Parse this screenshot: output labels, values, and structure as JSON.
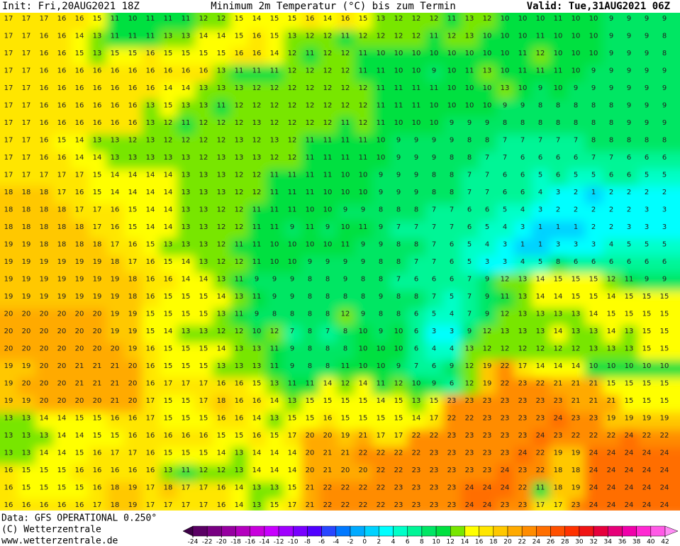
{
  "header": {
    "init": "Init: Fri,20AUG2021 18Z",
    "title": "Minimum 2m Temperatur (°C) bis zum Termin",
    "valid": "Valid: Tue,31AUG2021 06Z"
  },
  "map": {
    "rows": [
      [
        17,
        17,
        17,
        16,
        16,
        15,
        11,
        10,
        11,
        11,
        11,
        12,
        12,
        15,
        14,
        15,
        15,
        16,
        14,
        16,
        15,
        13,
        12,
        12,
        12,
        11,
        13,
        12,
        10,
        10,
        10,
        11,
        10,
        10,
        9,
        9,
        9,
        9
      ],
      [
        17,
        17,
        16,
        16,
        14,
        13,
        11,
        11,
        11,
        13,
        13,
        14,
        14,
        15,
        16,
        15,
        13,
        12,
        12,
        11,
        12,
        12,
        12,
        12,
        11,
        12,
        13,
        10,
        10,
        10,
        11,
        10,
        10,
        10,
        9,
        9,
        9,
        8
      ],
      [
        17,
        17,
        16,
        16,
        15,
        13,
        15,
        15,
        16,
        15,
        15,
        15,
        15,
        16,
        16,
        14,
        12,
        11,
        12,
        12,
        11,
        10,
        10,
        10,
        10,
        10,
        10,
        10,
        10,
        11,
        12,
        10,
        10,
        10,
        9,
        9,
        9,
        8
      ],
      [
        17,
        17,
        16,
        16,
        16,
        16,
        16,
        16,
        16,
        16,
        16,
        16,
        13,
        11,
        11,
        11,
        12,
        12,
        12,
        12,
        11,
        11,
        10,
        10,
        9,
        10,
        11,
        13,
        10,
        11,
        11,
        11,
        10,
        9,
        9,
        9,
        9,
        9
      ],
      [
        17,
        17,
        16,
        16,
        16,
        16,
        16,
        16,
        16,
        14,
        14,
        13,
        13,
        13,
        12,
        12,
        12,
        12,
        12,
        12,
        12,
        11,
        11,
        11,
        11,
        10,
        10,
        10,
        13,
        10,
        9,
        10,
        9,
        9,
        9,
        9,
        9,
        9
      ],
      [
        17,
        17,
        16,
        16,
        16,
        16,
        16,
        16,
        13,
        15,
        13,
        13,
        11,
        12,
        12,
        12,
        12,
        12,
        12,
        12,
        12,
        11,
        11,
        11,
        10,
        10,
        10,
        10,
        9,
        9,
        8,
        8,
        8,
        8,
        8,
        9,
        9,
        9
      ],
      [
        17,
        17,
        16,
        16,
        16,
        16,
        16,
        16,
        13,
        12,
        11,
        12,
        12,
        12,
        13,
        12,
        12,
        12,
        12,
        11,
        12,
        11,
        10,
        10,
        10,
        9,
        9,
        9,
        8,
        8,
        8,
        8,
        8,
        8,
        8,
        9,
        9,
        9
      ],
      [
        17,
        17,
        16,
        15,
        14,
        13,
        13,
        12,
        13,
        12,
        12,
        12,
        12,
        13,
        12,
        13,
        12,
        11,
        11,
        11,
        11,
        10,
        9,
        9,
        9,
        9,
        8,
        8,
        7,
        7,
        7,
        7,
        7,
        8,
        8,
        8,
        8,
        8
      ],
      [
        17,
        17,
        16,
        16,
        14,
        14,
        13,
        13,
        13,
        13,
        13,
        12,
        13,
        13,
        13,
        12,
        12,
        11,
        11,
        11,
        11,
        10,
        9,
        9,
        9,
        8,
        8,
        7,
        7,
        6,
        6,
        6,
        6,
        7,
        7,
        6,
        6,
        6
      ],
      [
        17,
        17,
        17,
        17,
        17,
        15,
        14,
        14,
        14,
        14,
        13,
        13,
        13,
        12,
        12,
        11,
        11,
        11,
        11,
        10,
        10,
        9,
        9,
        9,
        8,
        8,
        7,
        7,
        6,
        6,
        5,
        6,
        5,
        5,
        6,
        6,
        5,
        5
      ],
      [
        18,
        18,
        18,
        17,
        16,
        15,
        14,
        14,
        14,
        14,
        13,
        13,
        13,
        12,
        12,
        11,
        11,
        11,
        10,
        10,
        10,
        9,
        9,
        9,
        8,
        8,
        7,
        7,
        6,
        6,
        4,
        3,
        2,
        1,
        2,
        2,
        2,
        2
      ],
      [
        18,
        18,
        18,
        18,
        17,
        17,
        16,
        15,
        14,
        14,
        13,
        13,
        12,
        12,
        11,
        11,
        11,
        10,
        10,
        9,
        9,
        8,
        8,
        8,
        7,
        7,
        6,
        6,
        5,
        4,
        3,
        2,
        2,
        2,
        2,
        2,
        3,
        3
      ],
      [
        18,
        18,
        18,
        18,
        18,
        17,
        16,
        15,
        14,
        14,
        13,
        13,
        12,
        12,
        11,
        11,
        9,
        11,
        9,
        10,
        11,
        9,
        7,
        7,
        7,
        7,
        6,
        5,
        4,
        3,
        1,
        1,
        1,
        2,
        2,
        3,
        3,
        3
      ],
      [
        19,
        19,
        18,
        18,
        18,
        18,
        17,
        16,
        15,
        13,
        13,
        13,
        12,
        11,
        11,
        10,
        10,
        10,
        10,
        11,
        9,
        9,
        8,
        8,
        7,
        6,
        5,
        4,
        3,
        1,
        1,
        3,
        3,
        3,
        4,
        5,
        5,
        5
      ],
      [
        19,
        19,
        19,
        19,
        19,
        19,
        18,
        17,
        16,
        15,
        14,
        13,
        12,
        12,
        11,
        10,
        10,
        9,
        9,
        9,
        9,
        8,
        8,
        7,
        7,
        6,
        5,
        3,
        3,
        4,
        5,
        8,
        6,
        6,
        6,
        6,
        6,
        6
      ],
      [
        19,
        19,
        19,
        19,
        19,
        19,
        19,
        18,
        16,
        16,
        14,
        14,
        13,
        11,
        9,
        9,
        9,
        8,
        8,
        9,
        8,
        8,
        7,
        6,
        6,
        6,
        7,
        9,
        12,
        13,
        14,
        15,
        15,
        15,
        12,
        11,
        9,
        9
      ],
      [
        19,
        19,
        19,
        19,
        19,
        19,
        19,
        18,
        16,
        15,
        15,
        15,
        14,
        13,
        11,
        9,
        9,
        8,
        8,
        8,
        8,
        9,
        8,
        8,
        7,
        5,
        7,
        9,
        11,
        13,
        14,
        14,
        15,
        15,
        14,
        15,
        15,
        15
      ],
      [
        20,
        20,
        20,
        20,
        20,
        20,
        19,
        19,
        15,
        15,
        15,
        15,
        13,
        11,
        9,
        8,
        8,
        8,
        8,
        12,
        9,
        8,
        8,
        6,
        5,
        4,
        7,
        9,
        12,
        13,
        13,
        13,
        13,
        14,
        15,
        15,
        15,
        15
      ],
      [
        20,
        20,
        20,
        20,
        20,
        20,
        19,
        19,
        15,
        14,
        13,
        13,
        12,
        12,
        10,
        12,
        7,
        8,
        7,
        8,
        10,
        9,
        10,
        6,
        3,
        3,
        9,
        12,
        13,
        13,
        13,
        14,
        13,
        13,
        14,
        13,
        15,
        15
      ],
      [
        20,
        20,
        20,
        20,
        20,
        20,
        20,
        19,
        16,
        15,
        15,
        15,
        14,
        13,
        13,
        11,
        9,
        8,
        8,
        8,
        10,
        10,
        10,
        6,
        4,
        4,
        13,
        12,
        12,
        12,
        12,
        12,
        12,
        13,
        13,
        13,
        15,
        15
      ],
      [
        19,
        19,
        20,
        20,
        21,
        21,
        21,
        20,
        16,
        15,
        15,
        15,
        13,
        13,
        13,
        11,
        9,
        8,
        8,
        11,
        10,
        10,
        9,
        7,
        6,
        9,
        12,
        19,
        22,
        17,
        14,
        14,
        14,
        10,
        10,
        10,
        10,
        10
      ],
      [
        19,
        20,
        20,
        20,
        21,
        21,
        21,
        20,
        16,
        17,
        17,
        17,
        16,
        16,
        15,
        13,
        11,
        11,
        14,
        12,
        14,
        11,
        12,
        10,
        9,
        6,
        12,
        19,
        22,
        23,
        22,
        21,
        21,
        21,
        15,
        15,
        15,
        15
      ],
      [
        19,
        19,
        20,
        20,
        20,
        20,
        21,
        20,
        17,
        15,
        15,
        17,
        18,
        16,
        16,
        14,
        13,
        15,
        15,
        15,
        15,
        14,
        15,
        13,
        15,
        23,
        23,
        23,
        23,
        23,
        23,
        23,
        21,
        21,
        21,
        15,
        15,
        15
      ],
      [
        13,
        13,
        14,
        14,
        15,
        15,
        16,
        16,
        17,
        15,
        15,
        15,
        16,
        16,
        14,
        13,
        15,
        15,
        16,
        15,
        15,
        15,
        15,
        14,
        17,
        22,
        22,
        23,
        23,
        23,
        23,
        24,
        23,
        23,
        19,
        19,
        19,
        19
      ],
      [
        13,
        13,
        13,
        14,
        14,
        15,
        15,
        16,
        16,
        16,
        16,
        16,
        15,
        15,
        16,
        15,
        17,
        20,
        20,
        19,
        21,
        17,
        17,
        22,
        22,
        23,
        23,
        23,
        23,
        23,
        24,
        23,
        22,
        22,
        22,
        24,
        22,
        22
      ],
      [
        13,
        13,
        14,
        14,
        15,
        16,
        17,
        17,
        16,
        15,
        15,
        15,
        14,
        13,
        14,
        14,
        14,
        20,
        21,
        21,
        22,
        22,
        22,
        22,
        23,
        23,
        23,
        23,
        23,
        24,
        22,
        19,
        19,
        24,
        24,
        24,
        24,
        24
      ],
      [
        16,
        15,
        15,
        15,
        16,
        16,
        16,
        16,
        16,
        13,
        11,
        12,
        12,
        13,
        14,
        14,
        14,
        20,
        21,
        20,
        20,
        22,
        22,
        23,
        23,
        23,
        23,
        23,
        24,
        23,
        22,
        18,
        18,
        24,
        24,
        24,
        24,
        24
      ],
      [
        16,
        15,
        15,
        15,
        15,
        16,
        18,
        19,
        17,
        18,
        17,
        17,
        16,
        14,
        13,
        13,
        15,
        21,
        22,
        22,
        22,
        22,
        23,
        23,
        23,
        23,
        24,
        24,
        24,
        22,
        11,
        18,
        19,
        24,
        24,
        24,
        24,
        24
      ],
      [
        16,
        16,
        16,
        16,
        16,
        17,
        18,
        19,
        17,
        17,
        17,
        17,
        16,
        14,
        13,
        15,
        17,
        21,
        22,
        22,
        22,
        22,
        23,
        23,
        23,
        23,
        24,
        24,
        23,
        23,
        17,
        17,
        23,
        24,
        24,
        24,
        24,
        24
      ]
    ]
  },
  "colorbar": {
    "ticks": [
      -24,
      -22,
      -20,
      -18,
      -16,
      -14,
      -12,
      -10,
      -8,
      -6,
      -4,
      -2,
      0,
      2,
      4,
      6,
      8,
      10,
      12,
      14,
      16,
      18,
      20,
      22,
      24,
      26,
      28,
      30,
      32,
      34,
      36,
      38,
      40,
      42
    ],
    "colors": [
      "#3c0046",
      "#5a0064",
      "#780082",
      "#9600a0",
      "#b400be",
      "#c800dc",
      "#c800ff",
      "#a000ff",
      "#7800ff",
      "#5000ff",
      "#2846ff",
      "#0078ff",
      "#00aaff",
      "#00d2ff",
      "#00ffff",
      "#00ffc8",
      "#00f596",
      "#00e664",
      "#00e040",
      "#78e600",
      "#ffff00",
      "#ffe600",
      "#ffc800",
      "#ffaa00",
      "#ff8c00",
      "#ff6e00",
      "#ff5000",
      "#ff3200",
      "#f01414",
      "#e6003c",
      "#e60078",
      "#f000aa",
      "#ff28d2",
      "#ff5ae6",
      "#ff8cf5"
    ]
  },
  "footer": {
    "source": "Data: GFS OPERATIONAL 0.250°",
    "copyright": "(C) Wetterzentrale",
    "url": "www.wetterzentrale.de"
  }
}
